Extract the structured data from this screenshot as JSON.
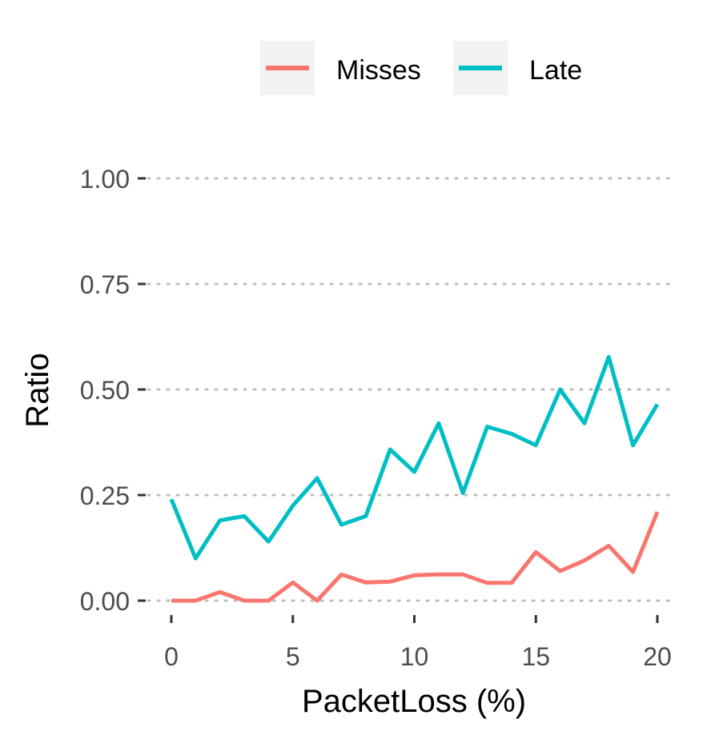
{
  "chart_data": {
    "type": "line",
    "xlabel": "PacketLoss (%)",
    "ylabel": "Ratio",
    "xlim": [
      0,
      20
    ],
    "ylim": [
      0,
      1
    ],
    "x_ticks": [
      0,
      5,
      10,
      15,
      20
    ],
    "y_ticks": [
      0,
      0.25,
      0.5,
      0.75,
      1
    ],
    "y_tick_labels": [
      "0.00",
      "0.25",
      "0.50",
      "0.75",
      "1.00"
    ],
    "x_tick_labels": [
      "0",
      "5",
      "10",
      "15",
      "20"
    ],
    "grid": "horizontal-dotted",
    "legend_position": "top",
    "x": [
      0,
      1,
      2,
      3,
      4,
      5,
      6,
      7,
      8,
      9,
      10,
      11,
      12,
      13,
      14,
      15,
      16,
      17,
      18,
      19,
      20
    ],
    "series": [
      {
        "name": "Misses",
        "color": "#F8766D",
        "values": [
          0.0,
          0.0,
          0.02,
          0.0,
          0.0,
          0.043,
          0.0,
          0.062,
          0.043,
          0.045,
          0.06,
          0.062,
          0.062,
          0.042,
          0.042,
          0.115,
          0.07,
          0.095,
          0.13,
          0.068,
          0.21
        ]
      },
      {
        "name": "Late",
        "color": "#00BFC4",
        "values": [
          0.24,
          0.1,
          0.19,
          0.2,
          0.14,
          0.225,
          0.29,
          0.18,
          0.2,
          0.358,
          0.305,
          0.42,
          0.255,
          0.412,
          0.395,
          0.368,
          0.5,
          0.42,
          0.577,
          0.368,
          0.465
        ]
      }
    ]
  }
}
